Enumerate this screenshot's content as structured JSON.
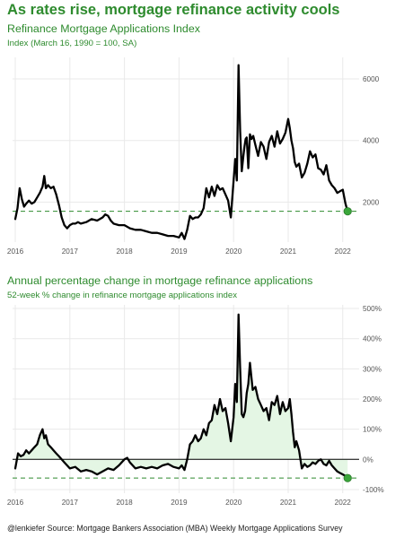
{
  "header": {
    "title": "As rates rise, mortgage refinance activity cools"
  },
  "panels": [
    {
      "subtitle": "Refinance Mortgage Applications Index",
      "note": "Index (March 16, 1990 = 100, SA)"
    },
    {
      "subtitle": "Annual percentage change in mortgage refinance applications",
      "note": "52-week % change in refinance mortgage applications index"
    }
  ],
  "footer": {
    "caption": "@lenkiefer Source: Mortgage Bankers Association (MBA) Weekly Mortgage Applications Survey"
  },
  "colors": {
    "line": "#000000",
    "accent": "#2e8b2e",
    "marker": "#3aa63a",
    "grid": "#e9e9e9",
    "area_fill": "#e4f6e4"
  },
  "chart_data": [
    {
      "type": "line",
      "title": "Refinance Mortgage Applications Index",
      "x_tick_labels": [
        "2016",
        "2017",
        "2018",
        "2019",
        "2020",
        "2021",
        "2022"
      ],
      "y_tick_labels": [
        "2000",
        "4000",
        "6000"
      ],
      "y_ticks": [
        2000,
        4000,
        6000
      ],
      "xlim": [
        2015.95,
        2022.3
      ],
      "ylim": [
        700,
        6700
      ],
      "grid": true,
      "series": [
        {
          "x": [
            2016.0,
            2016.04,
            2016.08,
            2016.12,
            2016.16,
            2016.2,
            2016.25,
            2016.3,
            2016.35,
            2016.4,
            2016.45,
            2016.5,
            2016.53,
            2016.56,
            2016.6,
            2016.65,
            2016.7,
            2016.75,
            2016.8,
            2016.85,
            2016.9,
            2016.95,
            2017.0,
            2017.05,
            2017.1,
            2017.15,
            2017.2,
            2017.3,
            2017.4,
            2017.5,
            2017.6,
            2017.65,
            2017.7,
            2017.75,
            2017.8,
            2017.9,
            2018.0,
            2018.1,
            2018.2,
            2018.3,
            2018.4,
            2018.5,
            2018.6,
            2018.7,
            2018.8,
            2018.9,
            2019.0,
            2019.05,
            2019.1,
            2019.15,
            2019.2,
            2019.25,
            2019.3,
            2019.35,
            2019.4,
            2019.45,
            2019.5,
            2019.55,
            2019.6,
            2019.65,
            2019.7,
            2019.75,
            2019.8,
            2019.85,
            2019.9,
            2019.95,
            2020.0,
            2020.03,
            2020.06,
            2020.09,
            2020.12,
            2020.15,
            2020.18,
            2020.2,
            2020.22,
            2020.24,
            2020.27,
            2020.3,
            2020.33,
            2020.36,
            2020.4,
            2020.45,
            2020.5,
            2020.55,
            2020.6,
            2020.65,
            2020.7,
            2020.75,
            2020.8,
            2020.85,
            2020.9,
            2020.95,
            2021.0,
            2021.03,
            2021.06,
            2021.09,
            2021.12,
            2021.15,
            2021.2,
            2021.25,
            2021.3,
            2021.35,
            2021.4,
            2021.45,
            2021.5,
            2021.55,
            2021.6,
            2021.65,
            2021.7,
            2021.75,
            2021.8,
            2021.85,
            2021.9,
            2021.95,
            2022.0,
            2022.05,
            2022.09
          ],
          "y": [
            1450,
            1800,
            2450,
            2100,
            1850,
            1950,
            2050,
            1950,
            2000,
            2150,
            2300,
            2500,
            2850,
            2450,
            2550,
            2450,
            2500,
            2250,
            1900,
            1500,
            1250,
            1150,
            1250,
            1300,
            1300,
            1350,
            1300,
            1350,
            1450,
            1400,
            1500,
            1600,
            1550,
            1400,
            1300,
            1250,
            1250,
            1150,
            1100,
            1100,
            1050,
            1000,
            1000,
            950,
            900,
            900,
            850,
            1000,
            800,
            1100,
            1550,
            1450,
            1500,
            1500,
            1600,
            1800,
            2450,
            2150,
            2500,
            2200,
            2550,
            2400,
            2450,
            2250,
            2050,
            1500,
            2700,
            3400,
            2700,
            6450,
            4300,
            3000,
            3500,
            3800,
            4050,
            4100,
            3100,
            4200,
            4050,
            4150,
            3850,
            3500,
            3950,
            3800,
            3400,
            3950,
            4150,
            3800,
            4300,
            3900,
            4050,
            4250,
            4700,
            4400,
            4000,
            3750,
            3300,
            3150,
            3250,
            2800,
            2950,
            3250,
            3650,
            3450,
            3550,
            3100,
            3050,
            2900,
            3200,
            2700,
            2550,
            2450,
            2300,
            2350,
            2400,
            1950,
            1700
          ]
        }
      ],
      "reference_line_y": 1700,
      "last_point": {
        "x": 2022.09,
        "y": 1700
      }
    },
    {
      "type": "area",
      "title": "Annual percentage change in mortgage refinance applications",
      "x_tick_labels": [
        "2016",
        "2017",
        "2018",
        "2019",
        "2020",
        "2021",
        "2022"
      ],
      "y_tick_labels": [
        "-100%",
        "0%",
        "100%",
        "200%",
        "300%",
        "400%",
        "500%"
      ],
      "y_ticks": [
        -100,
        0,
        100,
        200,
        300,
        400,
        500
      ],
      "xlim": [
        2015.95,
        2022.3
      ],
      "ylim": [
        -112,
        512
      ],
      "grid": true,
      "zero_line": 0,
      "series": [
        {
          "x": [
            2016.0,
            2016.05,
            2016.1,
            2016.15,
            2016.2,
            2016.25,
            2016.3,
            2016.35,
            2016.4,
            2016.45,
            2016.5,
            2016.53,
            2016.56,
            2016.6,
            2016.65,
            2016.7,
            2016.75,
            2016.8,
            2016.9,
            2017.0,
            2017.1,
            2017.2,
            2017.3,
            2017.4,
            2017.5,
            2017.6,
            2017.7,
            2017.8,
            2017.9,
            2018.0,
            2018.05,
            2018.1,
            2018.2,
            2018.3,
            2018.4,
            2018.5,
            2018.6,
            2018.7,
            2018.8,
            2018.9,
            2019.0,
            2019.05,
            2019.1,
            2019.15,
            2019.2,
            2019.25,
            2019.3,
            2019.35,
            2019.4,
            2019.45,
            2019.5,
            2019.55,
            2019.6,
            2019.65,
            2019.7,
            2019.75,
            2019.8,
            2019.85,
            2019.9,
            2019.95,
            2020.0,
            2020.03,
            2020.06,
            2020.09,
            2020.12,
            2020.15,
            2020.18,
            2020.21,
            2020.24,
            2020.27,
            2020.3,
            2020.35,
            2020.4,
            2020.45,
            2020.5,
            2020.55,
            2020.6,
            2020.65,
            2020.7,
            2020.75,
            2020.8,
            2020.85,
            2020.9,
            2020.95,
            2021.0,
            2021.03,
            2021.06,
            2021.09,
            2021.12,
            2021.15,
            2021.2,
            2021.25,
            2021.3,
            2021.35,
            2021.4,
            2021.45,
            2021.5,
            2021.55,
            2021.6,
            2021.65,
            2021.7,
            2021.75,
            2021.8,
            2021.85,
            2021.9,
            2021.95,
            2022.0,
            2022.05,
            2022.09
          ],
          "y": [
            -30,
            20,
            10,
            15,
            30,
            20,
            30,
            40,
            50,
            80,
            100,
            70,
            80,
            50,
            40,
            30,
            20,
            10,
            -10,
            -30,
            -25,
            -40,
            -35,
            -40,
            -50,
            -40,
            -30,
            -35,
            -20,
            0,
            5,
            -10,
            -30,
            -25,
            -30,
            -25,
            -30,
            -20,
            -15,
            -25,
            -30,
            -20,
            -35,
            0,
            50,
            60,
            80,
            60,
            70,
            100,
            80,
            120,
            130,
            180,
            150,
            200,
            160,
            170,
            120,
            60,
            140,
            250,
            190,
            480,
            300,
            150,
            140,
            160,
            220,
            250,
            320,
            230,
            240,
            200,
            180,
            160,
            170,
            130,
            190,
            180,
            210,
            150,
            190,
            160,
            170,
            200,
            150,
            90,
            40,
            60,
            30,
            -30,
            -15,
            -25,
            -20,
            -10,
            -15,
            -5,
            0,
            -15,
            -20,
            -5,
            -20,
            -30,
            -40,
            -45,
            -50,
            -55,
            -62
          ]
        }
      ],
      "reference_line_y": -62,
      "last_point": {
        "x": 2022.09,
        "y": -62
      }
    }
  ]
}
